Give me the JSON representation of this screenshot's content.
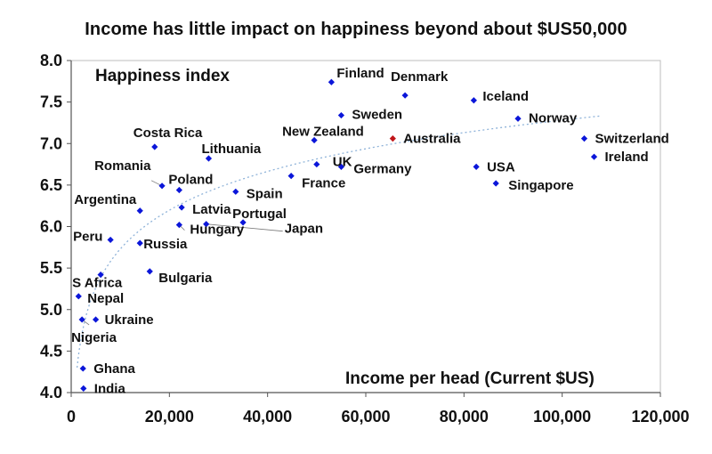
{
  "chart_data": {
    "type": "scatter",
    "title": "Income has little impact on happiness beyond about $US50,000",
    "ylabel": "Happiness index",
    "xlabel": "Income per head (Current $US)",
    "xlim": [
      0,
      120000
    ],
    "ylim": [
      4.0,
      8.0
    ],
    "x_ticks": [
      0,
      20000,
      40000,
      60000,
      80000,
      100000,
      120000
    ],
    "x_tick_labels": [
      "0",
      "20,000",
      "40,000",
      "60,000",
      "80,000",
      "100,000",
      "120,000"
    ],
    "y_ticks": [
      4.0,
      4.5,
      5.0,
      5.5,
      6.0,
      6.5,
      7.0,
      7.5,
      8.0
    ],
    "y_tick_labels": [
      "4.0",
      "4.5",
      "5.0",
      "5.5",
      "6.0",
      "6.5",
      "7.0",
      "7.5",
      "8.0"
    ],
    "grid": false,
    "trendline": "logarithmic, dotted",
    "colors": {
      "point": "#0b16d9",
      "highlight": "#c0161a",
      "trend": "#8fb3d9"
    },
    "points": [
      {
        "name": "Finland",
        "x": 53000,
        "y": 7.74
      },
      {
        "name": "Denmark",
        "x": 68000,
        "y": 7.58
      },
      {
        "name": "Iceland",
        "x": 82000,
        "y": 7.52
      },
      {
        "name": "Sweden",
        "x": 55000,
        "y": 7.34
      },
      {
        "name": "Norway",
        "x": 91000,
        "y": 7.3
      },
      {
        "name": "New Zealand",
        "x": 49500,
        "y": 7.04
      },
      {
        "name": "Australia",
        "x": 65500,
        "y": 7.06,
        "highlight": true
      },
      {
        "name": "Switzerland",
        "x": 104500,
        "y": 7.06
      },
      {
        "name": "Costa Rica",
        "x": 17000,
        "y": 6.96
      },
      {
        "name": "Ireland",
        "x": 106500,
        "y": 6.84
      },
      {
        "name": "Lithuania",
        "x": 28000,
        "y": 6.82
      },
      {
        "name": "UK",
        "x": 50000,
        "y": 6.75
      },
      {
        "name": "Germany",
        "x": 55000,
        "y": 6.72
      },
      {
        "name": "USA",
        "x": 82500,
        "y": 6.72
      },
      {
        "name": "France",
        "x": 44800,
        "y": 6.61
      },
      {
        "name": "Singapore",
        "x": 86500,
        "y": 6.52
      },
      {
        "name": "Romania",
        "x": 18500,
        "y": 6.49
      },
      {
        "name": "Poland",
        "x": 22000,
        "y": 6.44
      },
      {
        "name": "Spain",
        "x": 33500,
        "y": 6.42
      },
      {
        "name": "Latvia",
        "x": 22500,
        "y": 6.23
      },
      {
        "name": "Argentina",
        "x": 14000,
        "y": 6.19
      },
      {
        "name": "Portugal",
        "x": 35000,
        "y": 6.05
      },
      {
        "name": "Hungary",
        "x": 22000,
        "y": 6.02
      },
      {
        "name": "Japan",
        "x": 27500,
        "y": 6.03
      },
      {
        "name": "Peru",
        "x": 8000,
        "y": 5.84
      },
      {
        "name": "Russia",
        "x": 14000,
        "y": 5.8
      },
      {
        "name": "Bulgaria",
        "x": 16000,
        "y": 5.46
      },
      {
        "name": "S Africa",
        "x": 6000,
        "y": 5.42
      },
      {
        "name": "Nepal",
        "x": 1500,
        "y": 5.16
      },
      {
        "name": "Ukraine",
        "x": 5000,
        "y": 4.88
      },
      {
        "name": "Nigeria",
        "x": 2200,
        "y": 4.88
      },
      {
        "name": "Ghana",
        "x": 2400,
        "y": 4.29
      },
      {
        "name": "India",
        "x": 2500,
        "y": 4.05
      }
    ]
  }
}
